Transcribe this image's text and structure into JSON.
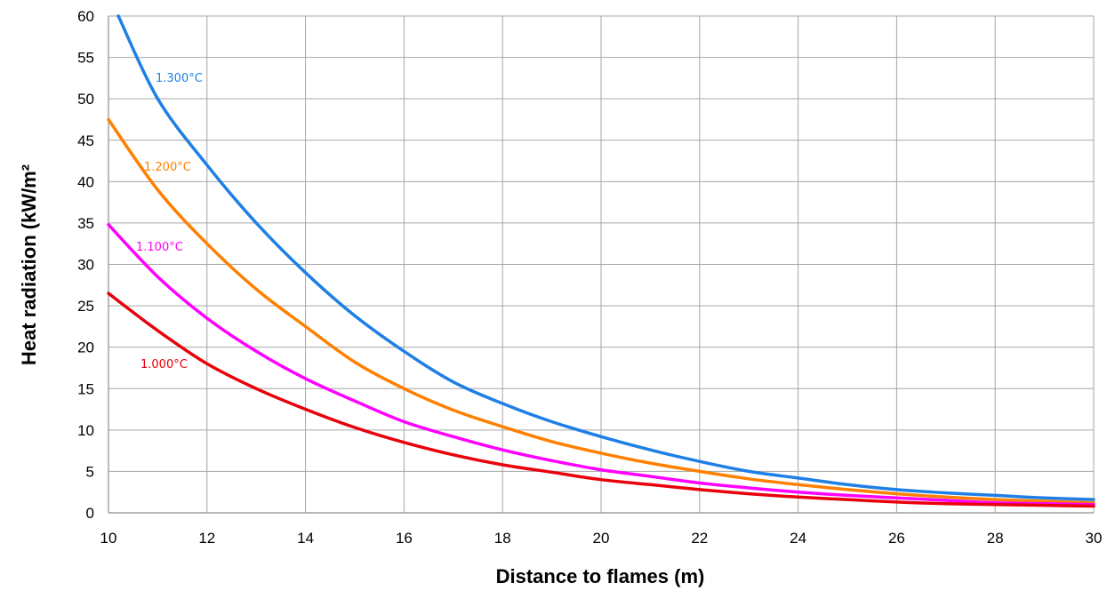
{
  "chart_data": {
    "type": "line",
    "title": "",
    "xlabel": "Distance to flames (m)",
    "ylabel": "Heat radiation (kW/m²",
    "xlim": [
      10,
      30
    ],
    "ylim": [
      0,
      60
    ],
    "xticks": [
      10,
      12,
      14,
      16,
      18,
      20,
      22,
      24,
      26,
      28,
      30
    ],
    "yticks": [
      0,
      5,
      10,
      15,
      20,
      25,
      30,
      35,
      40,
      45,
      50,
      55,
      60
    ],
    "grid": true,
    "legend": "inline labels",
    "x": [
      10,
      11,
      12,
      13,
      14,
      15,
      16,
      17,
      18,
      19,
      20,
      21,
      22,
      23,
      24,
      25,
      26,
      27,
      28,
      29,
      30
    ],
    "series": [
      {
        "name": "1.300°C",
        "color": "#1E7FE6",
        "x": [
          10.2,
          11,
          12,
          13,
          14,
          15,
          16,
          17,
          18,
          19,
          20,
          21,
          22,
          23,
          24,
          25,
          26,
          27,
          28,
          29,
          30
        ],
        "values": [
          60,
          50,
          42,
          35,
          29,
          23.8,
          19.5,
          15.8,
          13.2,
          11,
          9.2,
          7.6,
          6.2,
          5,
          4.2,
          3.4,
          2.8,
          2.4,
          2.1,
          1.8,
          1.6
        ]
      },
      {
        "name": "1.200°C",
        "color": "#FF8000",
        "x": [
          10,
          11,
          12,
          13,
          14,
          15,
          16,
          17,
          18,
          19,
          20,
          21,
          22,
          23,
          24,
          25,
          26,
          27,
          28,
          29,
          30
        ],
        "values": [
          47.5,
          39,
          32.5,
          27,
          22.5,
          18.2,
          15,
          12.4,
          10.4,
          8.6,
          7.2,
          6,
          5,
          4.1,
          3.4,
          2.8,
          2.3,
          1.9,
          1.6,
          1.4,
          1.2
        ]
      },
      {
        "name": "1.100°C",
        "color": "#FF00FF",
        "x": [
          10,
          11,
          12,
          13,
          14,
          15,
          16,
          17,
          18,
          19,
          20,
          21,
          22,
          23,
          24,
          25,
          26,
          27,
          28,
          29,
          30
        ],
        "values": [
          34.8,
          28.5,
          23.5,
          19.5,
          16.2,
          13.5,
          11,
          9.2,
          7.6,
          6.3,
          5.2,
          4.4,
          3.6,
          3,
          2.5,
          2.1,
          1.8,
          1.5,
          1.2,
          1.1,
          1
        ]
      },
      {
        "name": "1.000°C",
        "color": "#E8000B",
        "x": [
          10,
          11,
          12,
          13,
          14,
          15,
          16,
          17,
          18,
          19,
          20,
          21,
          22,
          23,
          24,
          25,
          26,
          27,
          28,
          29,
          30
        ],
        "values": [
          26.5,
          22,
          18,
          15,
          12.5,
          10.3,
          8.5,
          7,
          5.8,
          4.9,
          4,
          3.4,
          2.8,
          2.3,
          1.9,
          1.6,
          1.3,
          1.1,
          1,
          0.9,
          0.8
        ]
      }
    ]
  }
}
